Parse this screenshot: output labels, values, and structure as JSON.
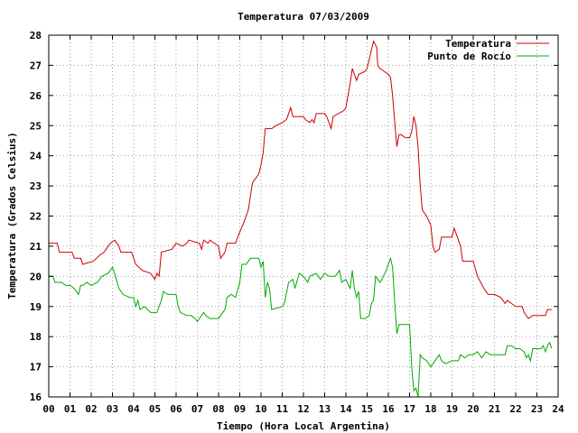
{
  "chart_data": {
    "type": "line",
    "title": "Temperatura 07/03/2009",
    "xlabel": "Tiempo (Hora Local Argentina)",
    "ylabel": "Temperatura (Grados Celsius)",
    "xlim": [
      0,
      24
    ],
    "ylim": [
      16,
      28
    ],
    "x_ticks": [
      "00",
      "01",
      "02",
      "03",
      "04",
      "05",
      "06",
      "07",
      "08",
      "09",
      "10",
      "11",
      "12",
      "13",
      "14",
      "15",
      "16",
      "17",
      "18",
      "19",
      "20",
      "21",
      "22",
      "23",
      "24"
    ],
    "y_ticks": [
      "16",
      "17",
      "18",
      "19",
      "20",
      "21",
      "22",
      "23",
      "24",
      "25",
      "26",
      "27",
      "28"
    ],
    "grid": true,
    "legend_position": "top-right",
    "series": [
      {
        "name": "Temperatura",
        "color": "#cc0000",
        "points": [
          [
            0.0,
            21.1
          ],
          [
            0.4,
            21.1
          ],
          [
            0.5,
            20.8
          ],
          [
            1.1,
            20.8
          ],
          [
            1.2,
            20.6
          ],
          [
            1.5,
            20.6
          ],
          [
            1.6,
            20.4
          ],
          [
            2.1,
            20.5
          ],
          [
            2.4,
            20.7
          ],
          [
            2.6,
            20.8
          ],
          [
            2.9,
            21.1
          ],
          [
            3.1,
            21.2
          ],
          [
            3.3,
            21.0
          ],
          [
            3.4,
            20.8
          ],
          [
            3.9,
            20.8
          ],
          [
            4.1,
            20.4
          ],
          [
            4.4,
            20.2
          ],
          [
            4.8,
            20.1
          ],
          [
            5.0,
            19.9
          ],
          [
            5.1,
            20.1
          ],
          [
            5.2,
            20.0
          ],
          [
            5.3,
            20.8
          ],
          [
            5.8,
            20.9
          ],
          [
            6.0,
            21.1
          ],
          [
            6.3,
            21.0
          ],
          [
            6.5,
            21.1
          ],
          [
            6.6,
            21.2
          ],
          [
            7.1,
            21.1
          ],
          [
            7.2,
            20.9
          ],
          [
            7.3,
            21.2
          ],
          [
            7.5,
            21.1
          ],
          [
            7.6,
            21.2
          ],
          [
            7.8,
            21.1
          ],
          [
            8.0,
            21.0
          ],
          [
            8.1,
            20.6
          ],
          [
            8.3,
            20.8
          ],
          [
            8.4,
            21.1
          ],
          [
            8.8,
            21.1
          ],
          [
            8.9,
            21.3
          ],
          [
            9.2,
            21.8
          ],
          [
            9.4,
            22.2
          ],
          [
            9.6,
            23.1
          ],
          [
            9.9,
            23.4
          ],
          [
            10.0,
            23.7
          ],
          [
            10.1,
            24.1
          ],
          [
            10.2,
            24.9
          ],
          [
            10.5,
            24.9
          ],
          [
            10.7,
            25.0
          ],
          [
            11.0,
            25.1
          ],
          [
            11.2,
            25.2
          ],
          [
            11.3,
            25.4
          ],
          [
            11.4,
            25.6
          ],
          [
            11.5,
            25.3
          ],
          [
            12.0,
            25.3
          ],
          [
            12.1,
            25.2
          ],
          [
            12.3,
            25.1
          ],
          [
            12.4,
            25.2
          ],
          [
            12.5,
            25.1
          ],
          [
            12.6,
            25.4
          ],
          [
            13.0,
            25.4
          ],
          [
            13.1,
            25.3
          ],
          [
            13.2,
            25.1
          ],
          [
            13.3,
            24.9
          ],
          [
            13.4,
            25.3
          ],
          [
            13.9,
            25.5
          ],
          [
            14.0,
            25.6
          ],
          [
            14.2,
            26.4
          ],
          [
            14.3,
            26.9
          ],
          [
            14.4,
            26.7
          ],
          [
            14.5,
            26.5
          ],
          [
            14.6,
            26.7
          ],
          [
            14.9,
            26.8
          ],
          [
            15.0,
            26.9
          ],
          [
            15.2,
            27.5
          ],
          [
            15.3,
            27.8
          ],
          [
            15.45,
            27.6
          ],
          [
            15.5,
            27.0
          ],
          [
            15.6,
            26.9
          ],
          [
            15.8,
            26.8
          ],
          [
            16.0,
            26.7
          ],
          [
            16.1,
            26.6
          ],
          [
            16.2,
            26.0
          ],
          [
            16.3,
            25.1
          ],
          [
            16.4,
            24.3
          ],
          [
            16.5,
            24.7
          ],
          [
            16.6,
            24.7
          ],
          [
            16.8,
            24.6
          ],
          [
            17.0,
            24.6
          ],
          [
            17.1,
            24.8
          ],
          [
            17.2,
            25.3
          ],
          [
            17.3,
            25.0
          ],
          [
            17.4,
            24.3
          ],
          [
            17.5,
            23.0
          ],
          [
            17.6,
            22.2
          ],
          [
            17.8,
            22.0
          ],
          [
            18.0,
            21.7
          ],
          [
            18.1,
            21.0
          ],
          [
            18.2,
            20.8
          ],
          [
            18.4,
            20.9
          ],
          [
            18.5,
            21.3
          ],
          [
            18.7,
            21.3
          ],
          [
            19.0,
            21.3
          ],
          [
            19.1,
            21.6
          ],
          [
            19.3,
            21.2
          ],
          [
            19.4,
            21.0
          ],
          [
            19.5,
            20.5
          ],
          [
            20.0,
            20.5
          ],
          [
            20.2,
            20.0
          ],
          [
            20.5,
            19.6
          ],
          [
            20.7,
            19.4
          ],
          [
            21.0,
            19.4
          ],
          [
            21.3,
            19.3
          ],
          [
            21.5,
            19.1
          ],
          [
            21.6,
            19.2
          ],
          [
            21.8,
            19.1
          ],
          [
            22.0,
            19.0
          ],
          [
            22.3,
            19.0
          ],
          [
            22.4,
            18.8
          ],
          [
            22.6,
            18.6
          ],
          [
            22.8,
            18.7
          ],
          [
            23.0,
            18.7
          ],
          [
            23.4,
            18.7
          ],
          [
            23.5,
            18.9
          ],
          [
            23.7,
            18.9
          ]
        ]
      },
      {
        "name": "Punto de Rocío",
        "color": "#00aa00",
        "points": [
          [
            0.0,
            20.0
          ],
          [
            0.2,
            20.0
          ],
          [
            0.3,
            19.8
          ],
          [
            0.6,
            19.8
          ],
          [
            0.8,
            19.7
          ],
          [
            1.0,
            19.7
          ],
          [
            1.2,
            19.6
          ],
          [
            1.4,
            19.4
          ],
          [
            1.5,
            19.7
          ],
          [
            1.6,
            19.7
          ],
          [
            1.8,
            19.8
          ],
          [
            2.0,
            19.7
          ],
          [
            2.3,
            19.8
          ],
          [
            2.5,
            20.0
          ],
          [
            2.8,
            20.1
          ],
          [
            3.0,
            20.3
          ],
          [
            3.1,
            20.1
          ],
          [
            3.3,
            19.6
          ],
          [
            3.5,
            19.4
          ],
          [
            3.8,
            19.3
          ],
          [
            4.0,
            19.3
          ],
          [
            4.1,
            19.0
          ],
          [
            4.2,
            19.2
          ],
          [
            4.3,
            18.9
          ],
          [
            4.5,
            19.0
          ],
          [
            4.8,
            18.8
          ],
          [
            5.1,
            18.8
          ],
          [
            5.3,
            19.2
          ],
          [
            5.4,
            19.5
          ],
          [
            5.6,
            19.4
          ],
          [
            6.0,
            19.4
          ],
          [
            6.1,
            19.0
          ],
          [
            6.2,
            18.8
          ],
          [
            6.5,
            18.7
          ],
          [
            6.7,
            18.7
          ],
          [
            6.9,
            18.6
          ],
          [
            7.0,
            18.5
          ],
          [
            7.3,
            18.8
          ],
          [
            7.4,
            18.7
          ],
          [
            7.6,
            18.6
          ],
          [
            8.0,
            18.6
          ],
          [
            8.3,
            18.9
          ],
          [
            8.4,
            19.3
          ],
          [
            8.6,
            19.4
          ],
          [
            8.8,
            19.3
          ],
          [
            9.0,
            19.8
          ],
          [
            9.1,
            20.4
          ],
          [
            9.3,
            20.4
          ],
          [
            9.5,
            20.6
          ],
          [
            9.9,
            20.6
          ],
          [
            10.0,
            20.3
          ],
          [
            10.1,
            20.5
          ],
          [
            10.2,
            19.3
          ],
          [
            10.3,
            19.8
          ],
          [
            10.4,
            19.6
          ],
          [
            10.5,
            18.9
          ],
          [
            11.0,
            19.0
          ],
          [
            11.1,
            19.1
          ],
          [
            11.3,
            19.8
          ],
          [
            11.5,
            19.9
          ],
          [
            11.6,
            19.6
          ],
          [
            11.8,
            20.1
          ],
          [
            12.0,
            20.0
          ],
          [
            12.2,
            19.8
          ],
          [
            12.3,
            20.0
          ],
          [
            12.6,
            20.1
          ],
          [
            12.8,
            19.9
          ],
          [
            13.0,
            20.1
          ],
          [
            13.2,
            20.0
          ],
          [
            13.5,
            20.0
          ],
          [
            13.7,
            20.2
          ],
          [
            13.8,
            19.8
          ],
          [
            14.0,
            19.9
          ],
          [
            14.2,
            19.6
          ],
          [
            14.3,
            20.2
          ],
          [
            14.4,
            19.6
          ],
          [
            14.5,
            19.3
          ],
          [
            14.6,
            19.5
          ],
          [
            14.7,
            18.6
          ],
          [
            14.9,
            18.6
          ],
          [
            15.1,
            18.7
          ],
          [
            15.2,
            19.1
          ],
          [
            15.3,
            19.2
          ],
          [
            15.4,
            20.0
          ],
          [
            15.6,
            19.8
          ],
          [
            15.7,
            19.9
          ],
          [
            15.9,
            20.2
          ],
          [
            16.1,
            20.6
          ],
          [
            16.2,
            20.3
          ],
          [
            16.3,
            19.1
          ],
          [
            16.4,
            18.1
          ],
          [
            16.5,
            18.4
          ],
          [
            17.0,
            18.4
          ],
          [
            17.1,
            17.0
          ],
          [
            17.2,
            16.2
          ],
          [
            17.3,
            16.3
          ],
          [
            17.4,
            16.0
          ],
          [
            17.5,
            17.4
          ],
          [
            17.6,
            17.3
          ],
          [
            17.8,
            17.2
          ],
          [
            18.0,
            17.0
          ],
          [
            18.3,
            17.3
          ],
          [
            18.4,
            17.4
          ],
          [
            18.5,
            17.2
          ],
          [
            18.7,
            17.1
          ],
          [
            19.0,
            17.2
          ],
          [
            19.3,
            17.2
          ],
          [
            19.4,
            17.4
          ],
          [
            19.6,
            17.3
          ],
          [
            19.8,
            17.4
          ],
          [
            20.0,
            17.4
          ],
          [
            20.2,
            17.5
          ],
          [
            20.4,
            17.3
          ],
          [
            20.6,
            17.5
          ],
          [
            20.8,
            17.4
          ],
          [
            21.0,
            17.4
          ],
          [
            21.5,
            17.4
          ],
          [
            21.6,
            17.7
          ],
          [
            21.8,
            17.7
          ],
          [
            22.0,
            17.6
          ],
          [
            22.2,
            17.6
          ],
          [
            22.4,
            17.5
          ],
          [
            22.5,
            17.3
          ],
          [
            22.6,
            17.4
          ],
          [
            22.7,
            17.2
          ],
          [
            22.8,
            17.6
          ],
          [
            23.0,
            17.6
          ],
          [
            23.2,
            17.6
          ],
          [
            23.3,
            17.7
          ],
          [
            23.4,
            17.5
          ],
          [
            23.5,
            17.7
          ],
          [
            23.6,
            17.8
          ],
          [
            23.7,
            17.6
          ]
        ]
      }
    ]
  }
}
